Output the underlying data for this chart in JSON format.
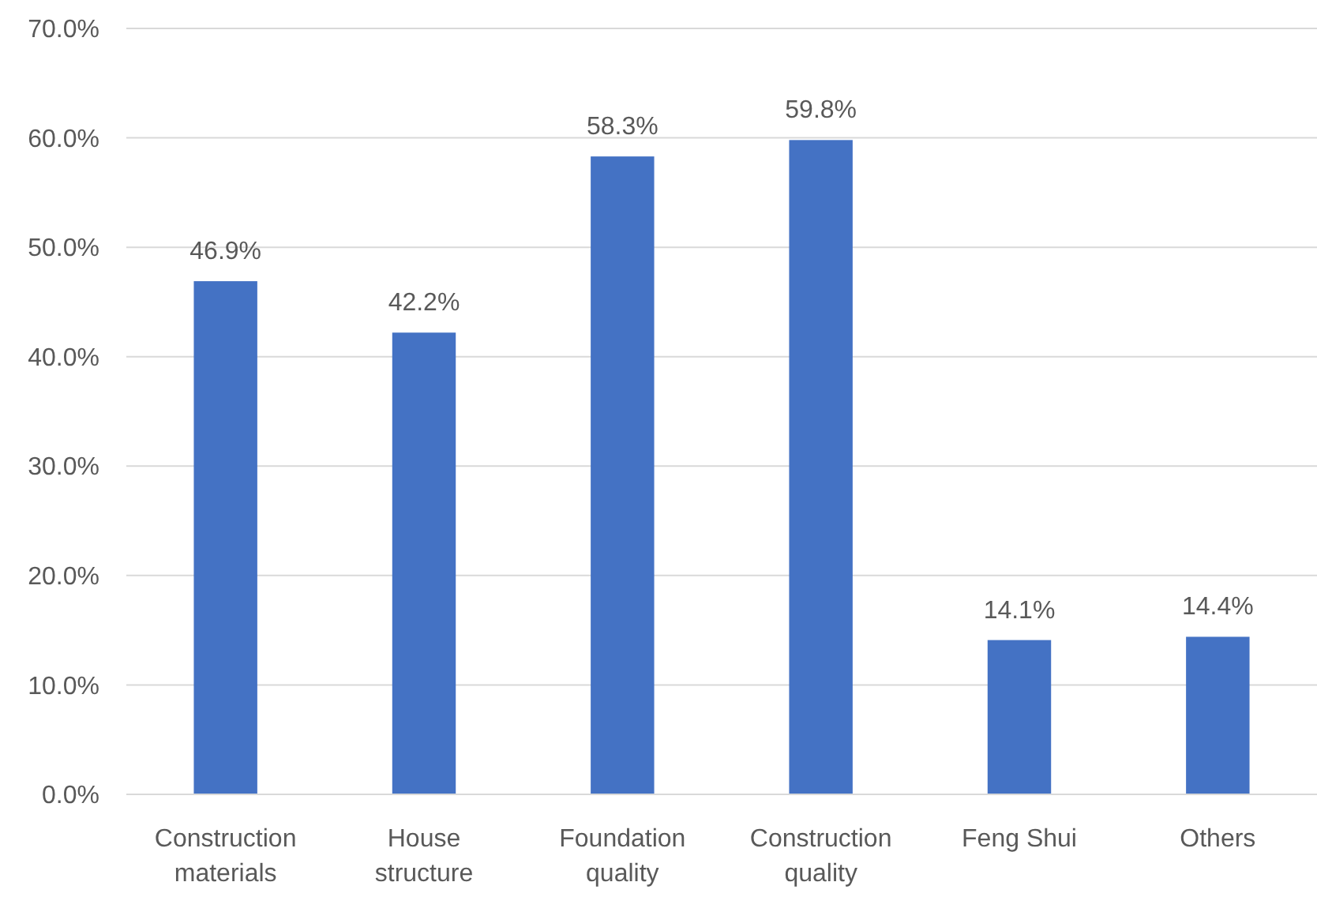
{
  "chart_data": {
    "type": "bar",
    "categories": [
      "Construction materials",
      "House structure",
      "Foundation quality",
      "Construction quality",
      "Feng Shui",
      "Others"
    ],
    "values": [
      46.9,
      42.2,
      58.3,
      59.8,
      14.1,
      14.4
    ],
    "value_labels": [
      "46.9%",
      "42.2%",
      "58.3%",
      "59.8%",
      "14.1%",
      "14.4%"
    ],
    "color": "#4472c4",
    "ylim": [
      0,
      70
    ],
    "yticks": [
      {
        "value": 0,
        "label": "0.0%"
      },
      {
        "value": 10,
        "label": "10.0%"
      },
      {
        "value": 20,
        "label": "20.0%"
      },
      {
        "value": 30,
        "label": "30.0%"
      },
      {
        "value": 40,
        "label": "40.0%"
      },
      {
        "value": 50,
        "label": "50.0%"
      },
      {
        "value": 60,
        "label": "60.0%"
      },
      {
        "value": 70,
        "label": "70.0%"
      }
    ],
    "grid": "y"
  }
}
